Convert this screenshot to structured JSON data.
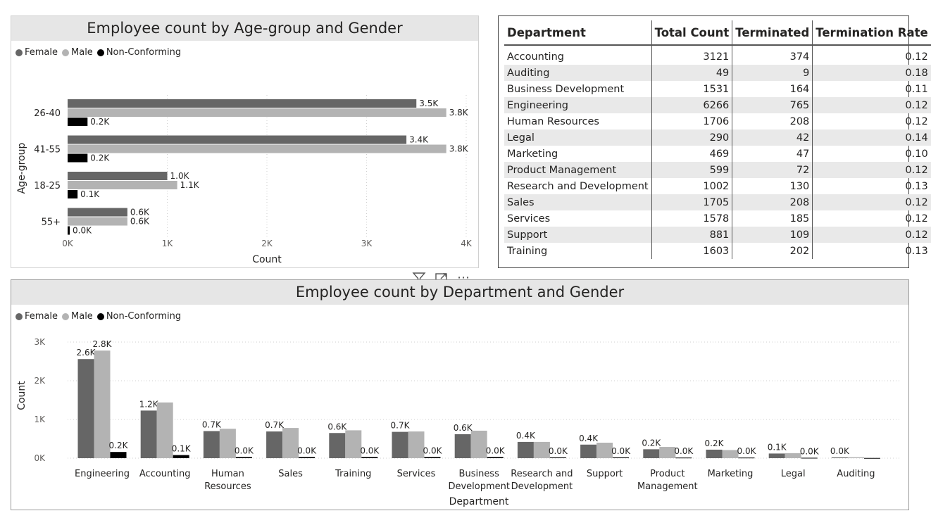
{
  "colors": {
    "female": "#666666",
    "male": "#b3b3b3",
    "nonconforming": "#000000"
  },
  "legend": [
    {
      "name": "Female",
      "color": "#666666"
    },
    {
      "name": "Male",
      "color": "#b3b3b3"
    },
    {
      "name": "Non-Conforming",
      "color": "#000000"
    }
  ],
  "chart_data": [
    {
      "type": "bar",
      "orientation": "horizontal",
      "title": "Employee count by Age-group and Gender",
      "xlabel": "Count",
      "ylabel": "Age-group",
      "xlim": [
        0,
        4000
      ],
      "x_ticks": [
        "0K",
        "1K",
        "2K",
        "3K",
        "4K"
      ],
      "categories": [
        "26-40",
        "41-55",
        "18-25",
        "55+"
      ],
      "series": [
        {
          "name": "Female",
          "values": [
            3500,
            3400,
            1000,
            600
          ],
          "labels": [
            "3.5K",
            "3.4K",
            "1.0K",
            "0.6K"
          ]
        },
        {
          "name": "Male",
          "values": [
            3800,
            3800,
            1100,
            600
          ],
          "labels": [
            "3.8K",
            "3.8K",
            "1.1K",
            "0.6K"
          ]
        },
        {
          "name": "Non-Conforming",
          "values": [
            200,
            200,
            100,
            20
          ],
          "labels": [
            "0.2K",
            "0.2K",
            "0.1K",
            "0.0K"
          ]
        }
      ],
      "grid": true,
      "legend_position": "top-left"
    },
    {
      "type": "bar",
      "orientation": "vertical",
      "title": "Employee count by Department and Gender",
      "xlabel": "Department",
      "ylabel": "Count",
      "ylim": [
        0,
        3000
      ],
      "y_ticks": [
        "0K",
        "1K",
        "2K",
        "3K"
      ],
      "categories": [
        "Engineering",
        "Accounting",
        "Human Resources",
        "Sales",
        "Training",
        "Services",
        "Business Development",
        "Research and Development",
        "Support",
        "Product Management",
        "Marketing",
        "Legal",
        "Auditing"
      ],
      "category_lines": [
        [
          "Engineering"
        ],
        [
          "Accounting"
        ],
        [
          "Human",
          "Resources"
        ],
        [
          "Sales"
        ],
        [
          "Training"
        ],
        [
          "Services"
        ],
        [
          "Business",
          "Development"
        ],
        [
          "Research and",
          "Development"
        ],
        [
          "Support"
        ],
        [
          "Product",
          "Management"
        ],
        [
          "Marketing"
        ],
        [
          "Legal"
        ],
        [
          "Auditing"
        ]
      ],
      "series": [
        {
          "name": "Female",
          "values": [
            2560,
            1230,
            700,
            690,
            650,
            680,
            620,
            420,
            350,
            230,
            220,
            120,
            20
          ],
          "labels": [
            "2.6K",
            "1.2K",
            "0.7K",
            "0.7K",
            "0.6K",
            "0.7K",
            "0.6K",
            "0.4K",
            "0.4K",
            "0.2K",
            "0.2K",
            "0.1K",
            "0.0K"
          ]
        },
        {
          "name": "Male",
          "values": [
            2780,
            1440,
            760,
            780,
            720,
            690,
            710,
            420,
            400,
            290,
            210,
            130,
            25
          ]
        },
        {
          "name": "Non-Conforming",
          "values": [
            160,
            80,
            30,
            30,
            30,
            30,
            30,
            20,
            20,
            15,
            15,
            10,
            5
          ],
          "labels": [
            "0.2K",
            "0.1K",
            "0.0K",
            "0.0K",
            "0.0K",
            "0.0K",
            "0.0K",
            "0.0K",
            "0.0K",
            "0.0K",
            "0.0K",
            "0.0K",
            ""
          ]
        }
      ],
      "male_labels": {
        "0": "2.8K"
      },
      "grid": true,
      "legend_position": "top-left"
    }
  ],
  "table": {
    "headers": [
      "Department",
      "Total Count",
      "Terminated",
      "Termination Rate"
    ],
    "rows": [
      [
        "Accounting",
        "3121",
        "374",
        "0.12"
      ],
      [
        "Auditing",
        "49",
        "9",
        "0.18"
      ],
      [
        "Business Development",
        "1531",
        "164",
        "0.11"
      ],
      [
        "Engineering",
        "6266",
        "765",
        "0.12"
      ],
      [
        "Human Resources",
        "1706",
        "208",
        "0.12"
      ],
      [
        "Legal",
        "290",
        "42",
        "0.14"
      ],
      [
        "Marketing",
        "469",
        "47",
        "0.10"
      ],
      [
        "Product Management",
        "599",
        "72",
        "0.12"
      ],
      [
        "Research and Development",
        "1002",
        "130",
        "0.13"
      ],
      [
        "Sales",
        "1705",
        "208",
        "0.12"
      ],
      [
        "Services",
        "1578",
        "185",
        "0.12"
      ],
      [
        "Support",
        "881",
        "109",
        "0.12"
      ],
      [
        "Training",
        "1603",
        "202",
        "0.13"
      ]
    ]
  },
  "toolbar": {
    "filter_icon": "filter-icon",
    "focus_icon": "focus-mode-icon",
    "more_icon": "more-options-icon",
    "more_label": "⋯"
  }
}
